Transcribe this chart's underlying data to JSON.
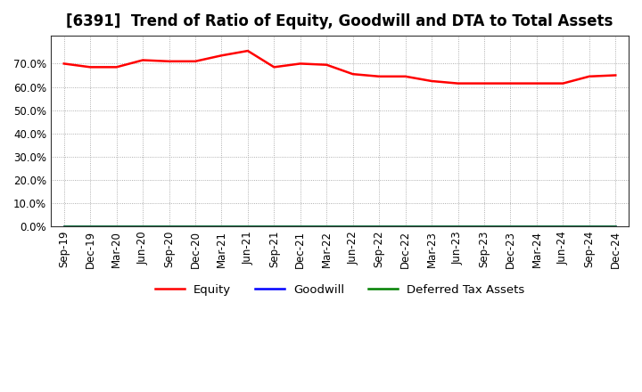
{
  "title": "[6391]  Trend of Ratio of Equity, Goodwill and DTA to Total Assets",
  "x_labels": [
    "Sep-19",
    "Dec-19",
    "Mar-20",
    "Jun-20",
    "Sep-20",
    "Dec-20",
    "Mar-21",
    "Jun-21",
    "Sep-21",
    "Dec-21",
    "Mar-22",
    "Jun-22",
    "Sep-22",
    "Dec-22",
    "Mar-23",
    "Jun-23",
    "Sep-23",
    "Dec-23",
    "Mar-24",
    "Jun-24",
    "Sep-24",
    "Dec-24"
  ],
  "equity": [
    70.0,
    68.5,
    68.5,
    71.5,
    71.0,
    71.0,
    73.5,
    75.5,
    68.5,
    70.0,
    69.5,
    65.5,
    64.5,
    64.5,
    62.5,
    61.5,
    61.5,
    61.5,
    61.5,
    61.5,
    64.5,
    65.0
  ],
  "goodwill": [
    0.0,
    0.0,
    0.0,
    0.0,
    0.0,
    0.0,
    0.0,
    0.0,
    0.0,
    0.0,
    0.0,
    0.0,
    0.0,
    0.0,
    0.0,
    0.0,
    0.0,
    0.0,
    0.0,
    0.0,
    0.0,
    0.0
  ],
  "dta": [
    0.0,
    0.0,
    0.0,
    0.0,
    0.0,
    0.0,
    0.0,
    0.0,
    0.0,
    0.0,
    0.0,
    0.0,
    0.0,
    0.0,
    0.0,
    0.0,
    0.0,
    0.0,
    0.0,
    0.0,
    0.0,
    0.0
  ],
  "equity_color": "#FF0000",
  "goodwill_color": "#0000FF",
  "dta_color": "#008000",
  "ylim": [
    0,
    82
  ],
  "yticks": [
    0,
    10,
    20,
    30,
    40,
    50,
    60,
    70
  ],
  "ytick_labels": [
    "0.0%",
    "10.0%",
    "20.0%",
    "30.0%",
    "40.0%",
    "50.0%",
    "60.0%",
    "70.0%"
  ],
  "title_fontsize": 12,
  "axis_fontsize": 8.5,
  "legend_labels": [
    "Equity",
    "Goodwill",
    "Deferred Tax Assets"
  ],
  "background_color": "#FFFFFF",
  "grid_color": "#AAAAAA",
  "spine_color": "#333333"
}
